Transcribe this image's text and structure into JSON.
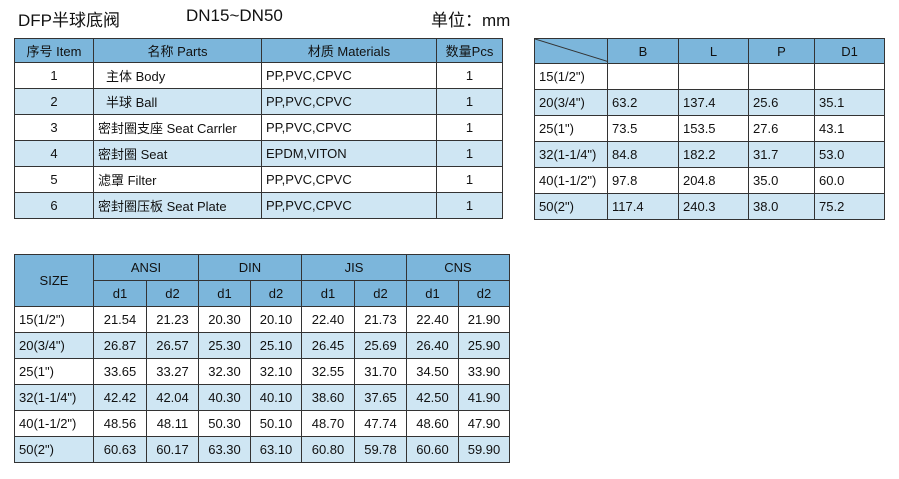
{
  "header": {
    "model": "DFP半球底阀",
    "size_range": "DN15~DN50",
    "unit": "单位：mm"
  },
  "parts_table": {
    "headers": [
      "序号 Item",
      "名称  Parts",
      "材质 Materials",
      "数量Pcs"
    ],
    "rows": [
      {
        "item": "1",
        "part": "主体 Body",
        "material": "PP,PVC,CPVC",
        "qty": "1"
      },
      {
        "item": "2",
        "part": "半球 Ball",
        "material": "PP,PVC,CPVC",
        "qty": "1"
      },
      {
        "item": "3",
        "part": "密封圈支座 Seat Carrler",
        "material": "PP,PVC,CPVC",
        "qty": "1"
      },
      {
        "item": "4",
        "part": "密封圈 Seat",
        "material": "EPDM,VITON",
        "qty": "1"
      },
      {
        "item": "5",
        "part": "滤罩 Filter",
        "material": "PP,PVC,CPVC",
        "qty": "1"
      },
      {
        "item": "6",
        "part": "密封圈压板 Seat Plate",
        "material": "PP,PVC,CPVC",
        "qty": "1"
      }
    ]
  },
  "dimension_table": {
    "headers": [
      "B",
      "L",
      "P",
      "D1"
    ],
    "rows": [
      {
        "size": "15(1/2\")",
        "B": "",
        "L": "",
        "P": "",
        "D1": ""
      },
      {
        "size": "20(3/4\")",
        "B": "63.2",
        "L": "137.4",
        "P": "25.6",
        "D1": "35.1"
      },
      {
        "size": "25(1\")",
        "B": "73.5",
        "L": "153.5",
        "P": "27.6",
        "D1": "43.1"
      },
      {
        "size": "32(1-1/4\")",
        "B": "84.8",
        "L": "182.2",
        "P": "31.7",
        "D1": "53.0"
      },
      {
        "size": "40(1-1/2\")",
        "B": "97.8",
        "L": "204.8",
        "P": "35.0",
        "D1": "60.0"
      },
      {
        "size": "50(2\")",
        "B": "117.4",
        "L": "240.3",
        "P": "38.0",
        "D1": "75.2"
      }
    ]
  },
  "standards_table": {
    "size_label": "SIZE",
    "standards": [
      "ANSI",
      "DIN",
      "JIS",
      "CNS"
    ],
    "sub": [
      "d1",
      "d2"
    ],
    "rows": [
      {
        "size": "15(1/2\")",
        "vals": [
          "21.54",
          "21.23",
          "20.30",
          "20.10",
          "22.40",
          "21.73",
          "22.40",
          "21.90"
        ]
      },
      {
        "size": "20(3/4\")",
        "vals": [
          "26.87",
          "26.57",
          "25.30",
          "25.10",
          "26.45",
          "25.69",
          "26.40",
          "25.90"
        ]
      },
      {
        "size": "25(1\")",
        "vals": [
          "33.65",
          "33.27",
          "32.30",
          "32.10",
          "32.55",
          "31.70",
          "34.50",
          "33.90"
        ]
      },
      {
        "size": "32(1-1/4\")",
        "vals": [
          "42.42",
          "42.04",
          "40.30",
          "40.10",
          "38.60",
          "37.65",
          "42.50",
          "41.90"
        ]
      },
      {
        "size": "40(1-1/2\")",
        "vals": [
          "48.56",
          "48.11",
          "50.30",
          "50.10",
          "48.70",
          "47.74",
          "48.60",
          "47.90"
        ]
      },
      {
        "size": "50(2\")",
        "vals": [
          "60.63",
          "60.17",
          "63.30",
          "63.10",
          "60.80",
          "59.78",
          "60.60",
          "59.90"
        ]
      }
    ]
  }
}
